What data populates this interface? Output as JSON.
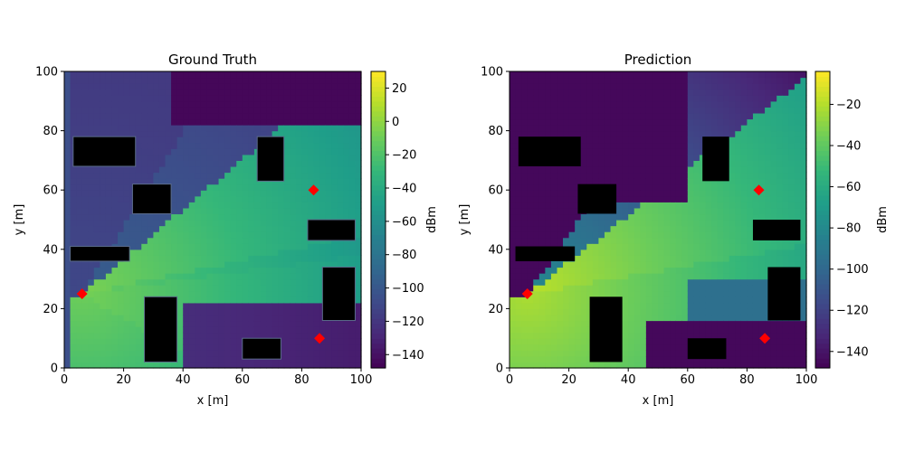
{
  "chart_data": [
    {
      "type": "heatmap",
      "title": "Ground Truth",
      "xlabel": "x [m]",
      "ylabel": "y [m]",
      "xlim": [
        0,
        100
      ],
      "ylim": [
        0,
        100
      ],
      "x_ticks": [
        "0",
        "20",
        "40",
        "60",
        "80",
        "100"
      ],
      "y_ticks": [
        "0",
        "20",
        "40",
        "60",
        "80",
        "100"
      ],
      "colormap": "viridis",
      "colorbar": {
        "label": "dBm",
        "range": [
          -148,
          30
        ],
        "ticks": [
          "20",
          "0",
          "−20",
          "−40",
          "−60",
          "−80",
          "−100",
          "−120",
          "−140"
        ],
        "tick_values": [
          20,
          0,
          -20,
          -40,
          -60,
          -80,
          -100,
          -120,
          -140
        ]
      },
      "transmitter": {
        "x": 6,
        "y": 25,
        "color": "#ff0000"
      },
      "receivers": [
        {
          "x": 84,
          "y": 60,
          "color": "#ff0000"
        },
        {
          "x": 86,
          "y": 10,
          "color": "#ff0000"
        }
      ],
      "buildings": [
        {
          "x0": 3,
          "x1": 24,
          "y0": 68,
          "y1": 78
        },
        {
          "x0": 23,
          "x1": 36,
          "y0": 52,
          "y1": 62
        },
        {
          "x0": 65,
          "x1": 74,
          "y0": 63,
          "y1": 78
        },
        {
          "x0": 82,
          "x1": 98,
          "y0": 43,
          "y1": 50
        },
        {
          "x0": 2,
          "x1": 22,
          "y0": 36,
          "y1": 41
        },
        {
          "x0": 87,
          "x1": 98,
          "y0": 16,
          "y1": 34
        },
        {
          "x0": 27,
          "x1": 38,
          "y0": 2,
          "y1": 24
        },
        {
          "x0": 60,
          "x1": 73,
          "y0": 3,
          "y1": 10
        }
      ]
    },
    {
      "type": "heatmap",
      "title": "Prediction",
      "xlabel": "x [m]",
      "ylabel": "y [m]",
      "xlim": [
        0,
        100
      ],
      "ylim": [
        0,
        100
      ],
      "x_ticks": [
        "0",
        "20",
        "40",
        "60",
        "80",
        "100"
      ],
      "y_ticks": [
        "0",
        "20",
        "40",
        "60",
        "80",
        "100"
      ],
      "colormap": "viridis",
      "colorbar": {
        "label": "dBm",
        "range": [
          -148,
          -4
        ],
        "ticks": [
          "−20",
          "−40",
          "−60",
          "−80",
          "−100",
          "−120",
          "−140"
        ],
        "tick_values": [
          -20,
          -40,
          -60,
          -80,
          -100,
          -120,
          -140
        ]
      },
      "transmitter": {
        "x": 6,
        "y": 25,
        "color": "#ff0000"
      },
      "receivers": [
        {
          "x": 84,
          "y": 60,
          "color": "#ff0000"
        },
        {
          "x": 86,
          "y": 10,
          "color": "#ff0000"
        }
      ],
      "buildings": [
        {
          "x0": 3,
          "x1": 24,
          "y0": 68,
          "y1": 78
        },
        {
          "x0": 23,
          "x1": 36,
          "y0": 52,
          "y1": 62
        },
        {
          "x0": 65,
          "x1": 74,
          "y0": 63,
          "y1": 78
        },
        {
          "x0": 82,
          "x1": 98,
          "y0": 43,
          "y1": 50
        },
        {
          "x0": 2,
          "x1": 22,
          "y0": 36,
          "y1": 41
        },
        {
          "x0": 87,
          "x1": 98,
          "y0": 16,
          "y1": 34
        },
        {
          "x0": 27,
          "x1": 38,
          "y0": 2,
          "y1": 24
        },
        {
          "x0": 60,
          "x1": 73,
          "y0": 3,
          "y1": 10
        }
      ]
    }
  ]
}
